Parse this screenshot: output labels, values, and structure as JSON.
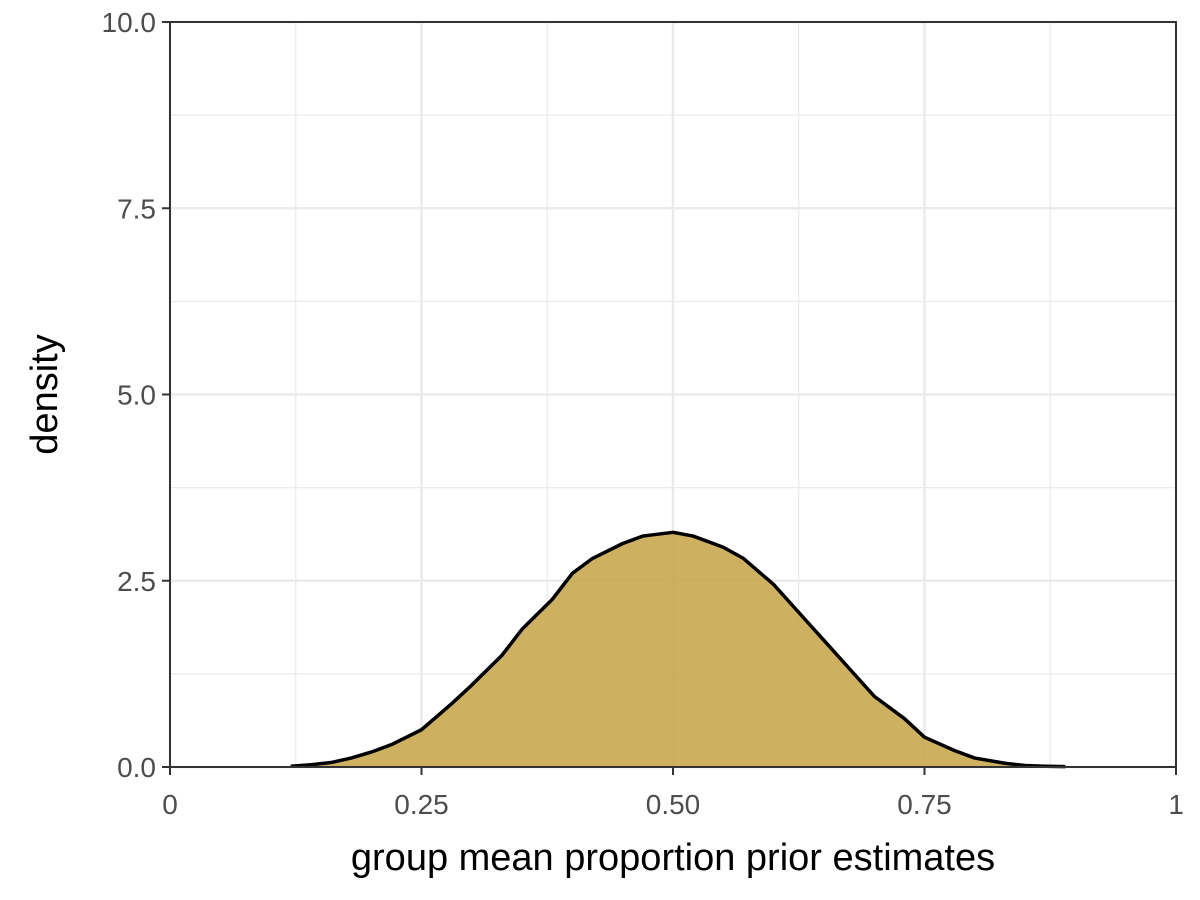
{
  "chart_data": {
    "type": "area",
    "subtype": "density",
    "title": "",
    "xlabel": "group mean proportion prior estimates",
    "ylabel": "density",
    "xlim": [
      0,
      1
    ],
    "ylim": [
      0,
      10
    ],
    "xticks": [
      0,
      0.25,
      0.5,
      0.75,
      1
    ],
    "xtick_labels": [
      "0",
      "0.25",
      "0.50",
      "0.75",
      "1"
    ],
    "yticks": [
      0,
      2.5,
      5,
      7.5,
      10
    ],
    "ytick_labels": [
      "0.0",
      "2.5",
      "5.0",
      "7.5",
      "10.0"
    ],
    "grid": true,
    "fill_color": "#c8a94f",
    "line_color": "#000000",
    "series": [
      {
        "x": [
          0.12,
          0.14,
          0.16,
          0.18,
          0.2,
          0.22,
          0.25,
          0.28,
          0.3,
          0.33,
          0.35,
          0.38,
          0.4,
          0.42,
          0.45,
          0.47,
          0.5,
          0.52,
          0.55,
          0.57,
          0.6,
          0.63,
          0.65,
          0.68,
          0.7,
          0.73,
          0.75,
          0.78,
          0.8,
          0.83,
          0.85,
          0.87,
          0.89
        ],
        "y": [
          0.01,
          0.03,
          0.06,
          0.12,
          0.2,
          0.3,
          0.5,
          0.85,
          1.1,
          1.5,
          1.85,
          2.25,
          2.6,
          2.8,
          3.0,
          3.1,
          3.15,
          3.1,
          2.95,
          2.8,
          2.45,
          2.0,
          1.7,
          1.25,
          0.95,
          0.65,
          0.4,
          0.22,
          0.12,
          0.05,
          0.02,
          0.01,
          0.005
        ]
      }
    ]
  }
}
